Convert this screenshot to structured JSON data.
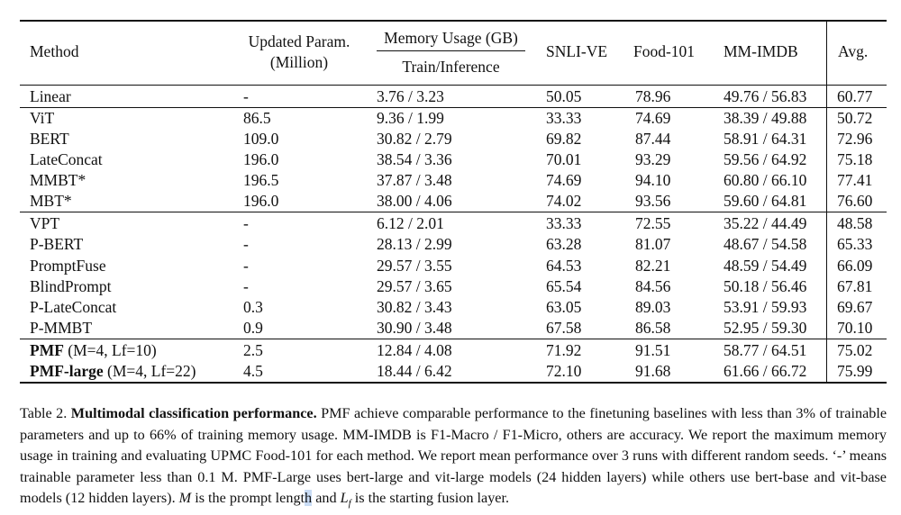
{
  "table": {
    "headers": {
      "method": "Method",
      "updated_param_line1": "Updated Param.",
      "updated_param_line2": "(Million)",
      "memory_usage": "Memory Usage (GB)",
      "memory_sub": "Train/Inference",
      "snli": "SNLI-VE",
      "food": "Food-101",
      "mmimdb": "MM-IMDB",
      "avg": "Avg."
    },
    "groups": [
      {
        "rows": [
          {
            "method": "Linear",
            "param": "-",
            "memory": "3.76 / 3.23",
            "snli": "50.05",
            "food": "78.96",
            "mmimdb": "49.76 / 56.83",
            "avg": "60.77"
          }
        ]
      },
      {
        "rows": [
          {
            "method": "ViT",
            "param": "86.5",
            "memory": "9.36 / 1.99",
            "snli": "33.33",
            "food": "74.69",
            "mmimdb": "38.39 / 49.88",
            "avg": "50.72"
          },
          {
            "method": "BERT",
            "param": "109.0",
            "memory": "30.82 / 2.79",
            "snli": "69.82",
            "food": "87.44",
            "mmimdb": "58.91 / 64.31",
            "avg": "72.96"
          },
          {
            "method": "LateConcat",
            "param": "196.0",
            "memory": "38.54 / 3.36",
            "snli": "70.01",
            "food": "93.29",
            "mmimdb": "59.56 / 64.92",
            "avg": "75.18"
          },
          {
            "method": "MMBT*",
            "param": "196.5",
            "memory": "37.87 / 3.48",
            "snli": "74.69",
            "food": "94.10",
            "mmimdb": "60.80 / 66.10",
            "avg": "77.41"
          },
          {
            "method": "MBT*",
            "param": "196.0",
            "memory": "38.00 / 4.06",
            "snli": "74.02",
            "food": "93.56",
            "mmimdb": "59.60 / 64.81",
            "avg": "76.60"
          }
        ]
      },
      {
        "rows": [
          {
            "method": "VPT",
            "param": "-",
            "memory": "6.12 / 2.01",
            "snli": "33.33",
            "food": "72.55",
            "mmimdb": "35.22 / 44.49",
            "avg": "48.58"
          },
          {
            "method": "P-BERT",
            "param": "-",
            "memory": "28.13 / 2.99",
            "snli": "63.28",
            "food": "81.07",
            "mmimdb": "48.67 / 54.58",
            "avg": "65.33"
          },
          {
            "method": "PromptFuse",
            "param": "-",
            "memory": "29.57 / 3.55",
            "snli": "64.53",
            "food": "82.21",
            "mmimdb": "48.59 / 54.49",
            "avg": "66.09"
          },
          {
            "method": "BlindPrompt",
            "param": "-",
            "memory": "29.57 / 3.65",
            "snli": "65.54",
            "food": "84.56",
            "mmimdb": "50.18 / 56.46",
            "avg": "67.81"
          },
          {
            "method": "P-LateConcat",
            "param": "0.3",
            "memory": "30.82 / 3.43",
            "snli": "63.05",
            "food": "89.03",
            "mmimdb": "53.91 / 59.93",
            "avg": "69.67"
          },
          {
            "method": "P-MMBT",
            "param": "0.9",
            "memory": "30.90 / 3.48",
            "snli": "67.58",
            "food": "86.58",
            "mmimdb": "52.95 / 59.30",
            "avg": "70.10"
          }
        ]
      },
      {
        "rows": [
          {
            "method_bold": "PMF",
            "method_rest": " (M=4, Lf=10)",
            "param": "2.5",
            "memory": "12.84 / 4.08",
            "snli": "71.92",
            "food": "91.51",
            "mmimdb": "58.77 / 64.51",
            "avg": "75.02"
          },
          {
            "method_bold": "PMF-large",
            "method_rest": " (M=4, Lf=22)",
            "param": "4.5",
            "memory": "18.44 / 6.42",
            "snli": "72.10",
            "food": "91.68",
            "mmimdb": "61.66 / 66.72",
            "avg": "75.99"
          }
        ]
      }
    ]
  },
  "caption": {
    "label": "Table 2.",
    "title": "Multimodal classification performance.",
    "body_1": "PMF achieve comparable performance to the finetuning baselines with less than 3% of trainable parameters and up to 66% of training memory usage. MM-IMDB is F1-Macro / F1-Micro, others are accuracy. We report the maximum memory usage in training and evaluating UPMC Food-101 for each method. We report mean performance over 3 runs with different random seeds. ‘-’ means trainable parameter less than 0.1 M. PMF-Large uses bert-large and vit-large models (24 hidden layers) while others use bert-base and vit-base models (12 hidden layers).",
    "body_m": "M",
    "body_2": " is the prompt lengt",
    "body_hl": "h",
    "body_3": " and ",
    "body_lf": "L",
    "body_lf_sub": "f",
    "body_4": " is the starting fusion layer."
  }
}
